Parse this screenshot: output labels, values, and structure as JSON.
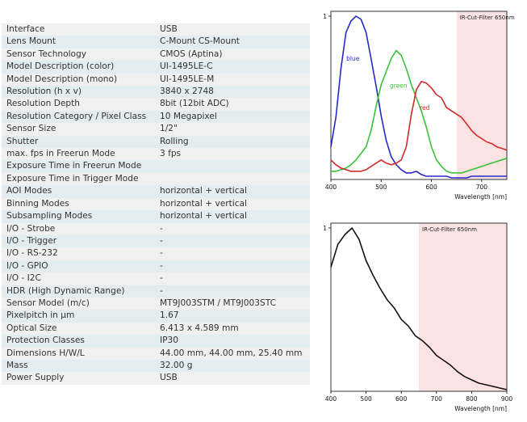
{
  "specs": [
    {
      "label": "Interface",
      "value": "USB"
    },
    {
      "label": "Lens Mount",
      "value": "C-Mount CS-Mount"
    },
    {
      "label": "Sensor Technology",
      "value": "CMOS (Aptina)"
    },
    {
      "label": "Model Description (color)",
      "value": "UI-1495LE-C"
    },
    {
      "label": "Model Description (mono)",
      "value": "UI-1495LE-M"
    },
    {
      "label": "Resolution (h x v)",
      "value": "3840 x 2748"
    },
    {
      "label": "Resolution Depth",
      "value": "8bit (12bit ADC)"
    },
    {
      "label": "Resolution Category / Pixel Class",
      "value": "10 Megapixel"
    },
    {
      "label": "Sensor Size",
      "value": "1/2\""
    },
    {
      "label": "Shutter",
      "value": "Rolling"
    },
    {
      "label": "max. fps in Freerun Mode",
      "value": "3 fps"
    },
    {
      "label": "Exposure Time in Freerun Mode",
      "value": ""
    },
    {
      "label": "Exposure Time in Trigger Mode",
      "value": ""
    },
    {
      "label": "AOI Modes",
      "value": "horizontal + vertical"
    },
    {
      "label": "Binning Modes",
      "value": "horizontal + vertical"
    },
    {
      "label": "Subsampling Modes",
      "value": "horizontal + vertical"
    },
    {
      "label": "I/O - Strobe",
      "value": "-"
    },
    {
      "label": "I/O - Trigger",
      "value": "-"
    },
    {
      "label": "I/O - RS-232",
      "value": "-"
    },
    {
      "label": "I/O - GPIO",
      "value": "-"
    },
    {
      "label": "I/O - I2C",
      "value": "-"
    },
    {
      "label": "HDR (High Dynamic Range)",
      "value": "-"
    },
    {
      "label": "Sensor Model (m/c)",
      "value": "MT9J003STM / MT9J003STC"
    },
    {
      "label": "Pixelpitch in µm",
      "value": "1.67"
    },
    {
      "label": "Optical Size",
      "value": "6.413 x 4.589 mm"
    },
    {
      "label": "Protection Classes",
      "value": "IP30"
    },
    {
      "label": "Dimensions H/W/L",
      "value": "44.00 mm, 44.00 mm, 25.40 mm"
    },
    {
      "label": "Mass",
      "value": "32.00 g"
    },
    {
      "label": "Power Supply",
      "value": "USB"
    }
  ],
  "chart_data": [
    {
      "type": "line",
      "xlabel": "Wavelength [nm]",
      "ylabel": "",
      "xlim": [
        400,
        750
      ],
      "ylim": [
        0,
        1
      ],
      "xticks": [
        400,
        500,
        600,
        700
      ],
      "yticks": [
        1
      ],
      "shaded_region": {
        "from": 650,
        "to": 750,
        "label": "IR-Cut-Filter 650nm",
        "color": "#fbe3e3"
      },
      "series": [
        {
          "name": "blue",
          "color": "#2828c8",
          "x": [
            400,
            410,
            420,
            430,
            440,
            450,
            460,
            470,
            480,
            490,
            500,
            510,
            520,
            530,
            540,
            550,
            560,
            570,
            580,
            590,
            600,
            610,
            620,
            630,
            640,
            650,
            660,
            670,
            680,
            690,
            700,
            710,
            720,
            730,
            740,
            750
          ],
          "y": [
            0.2,
            0.38,
            0.68,
            0.9,
            0.97,
            1.0,
            0.98,
            0.9,
            0.74,
            0.57,
            0.39,
            0.24,
            0.14,
            0.09,
            0.06,
            0.04,
            0.04,
            0.05,
            0.03,
            0.02,
            0.02,
            0.02,
            0.02,
            0.02,
            0.01,
            0.01,
            0.01,
            0.01,
            0.02,
            0.02,
            0.02,
            0.02,
            0.02,
            0.02,
            0.02,
            0.02
          ]
        },
        {
          "name": "green",
          "color": "#3ac23a",
          "x": [
            400,
            410,
            420,
            430,
            440,
            450,
            460,
            470,
            480,
            490,
            500,
            510,
            520,
            530,
            540,
            550,
            560,
            570,
            580,
            590,
            600,
            610,
            620,
            630,
            640,
            650,
            660,
            670,
            680,
            690,
            700,
            710,
            720,
            730,
            740,
            750
          ],
          "y": [
            0.05,
            0.05,
            0.06,
            0.07,
            0.09,
            0.12,
            0.16,
            0.2,
            0.3,
            0.45,
            0.58,
            0.66,
            0.74,
            0.79,
            0.76,
            0.68,
            0.58,
            0.5,
            0.42,
            0.32,
            0.2,
            0.12,
            0.08,
            0.05,
            0.04,
            0.04,
            0.04,
            0.05,
            0.06,
            0.07,
            0.08,
            0.09,
            0.1,
            0.11,
            0.12,
            0.13
          ]
        },
        {
          "name": "red",
          "color": "#d22a2a",
          "x": [
            400,
            410,
            420,
            430,
            440,
            450,
            460,
            470,
            480,
            490,
            500,
            510,
            520,
            530,
            540,
            550,
            560,
            570,
            580,
            590,
            600,
            610,
            620,
            630,
            640,
            650,
            660,
            670,
            680,
            690,
            700,
            710,
            720,
            730,
            740,
            750
          ],
          "y": [
            0.12,
            0.09,
            0.07,
            0.06,
            0.05,
            0.05,
            0.05,
            0.06,
            0.08,
            0.1,
            0.12,
            0.1,
            0.09,
            0.1,
            0.12,
            0.2,
            0.4,
            0.55,
            0.6,
            0.59,
            0.56,
            0.52,
            0.5,
            0.44,
            0.42,
            0.4,
            0.38,
            0.34,
            0.3,
            0.27,
            0.25,
            0.23,
            0.22,
            0.2,
            0.19,
            0.18
          ]
        }
      ]
    },
    {
      "type": "line",
      "xlabel": "Wavelength [nm]",
      "ylabel": "",
      "xlim": [
        400,
        900
      ],
      "ylim": [
        0,
        1
      ],
      "xticks": [
        400,
        500,
        600,
        700,
        800,
        900
      ],
      "yticks": [
        1
      ],
      "shaded_region": {
        "from": 650,
        "to": 900,
        "label": "IR-Cut-Filter 650nm",
        "color": "#fbe3e3"
      },
      "series": [
        {
          "name": "",
          "color": "#111111",
          "x": [
            400,
            420,
            440,
            460,
            480,
            500,
            520,
            540,
            560,
            580,
            600,
            620,
            640,
            660,
            680,
            700,
            720,
            740,
            760,
            780,
            800,
            820,
            840,
            860,
            880,
            900
          ],
          "y": [
            0.76,
            0.9,
            0.96,
            1.0,
            0.93,
            0.8,
            0.71,
            0.63,
            0.56,
            0.51,
            0.44,
            0.4,
            0.34,
            0.31,
            0.27,
            0.22,
            0.19,
            0.16,
            0.12,
            0.09,
            0.07,
            0.05,
            0.04,
            0.03,
            0.02,
            0.01
          ]
        }
      ]
    }
  ]
}
